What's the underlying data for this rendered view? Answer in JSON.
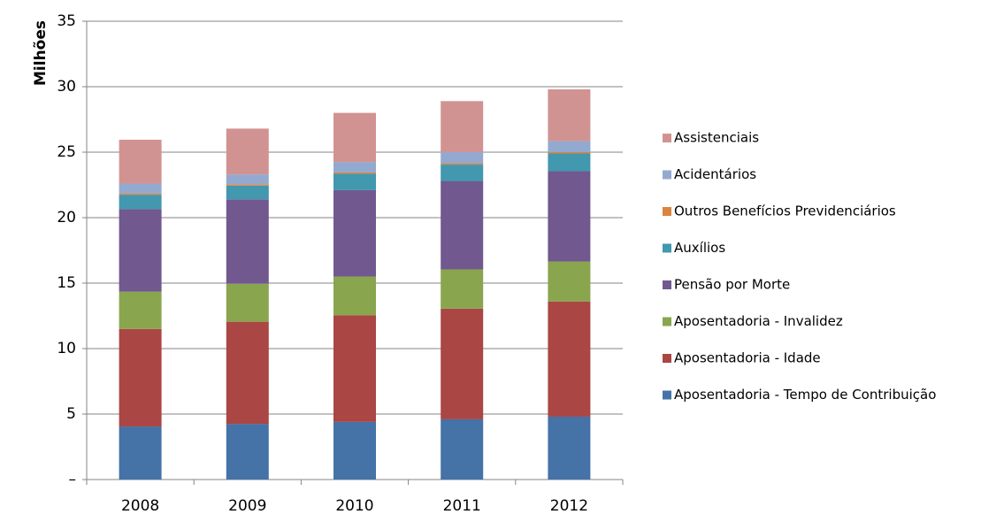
{
  "chart_data": {
    "type": "stacked_bar",
    "y_label": "Milhões",
    "categories": [
      "2008",
      "2009",
      "2010",
      "2011",
      "2012"
    ],
    "series": [
      {
        "name": "Aposentadoria - Tempo de Contribuição",
        "color": "#4572a7",
        "values": [
          4.05,
          4.25,
          4.4,
          4.6,
          4.8
        ]
      },
      {
        "name": "Aposentadoria - Idade",
        "color": "#aa4643",
        "values": [
          7.45,
          7.8,
          8.15,
          8.45,
          8.8
        ]
      },
      {
        "name": "Aposentadoria - Invalidez",
        "color": "#89a54e",
        "values": [
          2.85,
          2.9,
          2.95,
          3.0,
          3.05
        ]
      },
      {
        "name": "Pensão por Morte",
        "color": "#71588f",
        "values": [
          6.3,
          6.45,
          6.6,
          6.75,
          6.9
        ]
      },
      {
        "name": "Auxílios",
        "color": "#4198af",
        "values": [
          1.1,
          1.05,
          1.25,
          1.25,
          1.35
        ]
      },
      {
        "name": "Outros Benefícios Previdenciários",
        "color": "#db843d",
        "values": [
          0.1,
          0.1,
          0.1,
          0.1,
          0.1
        ]
      },
      {
        "name": "Acidentários",
        "color": "#93a9cf",
        "values": [
          0.75,
          0.75,
          0.8,
          0.85,
          0.85
        ]
      },
      {
        "name": "Assistenciais",
        "color": "#d19392",
        "values": [
          3.35,
          3.5,
          3.75,
          3.9,
          3.95
        ]
      }
    ],
    "ylim": [
      0,
      35
    ],
    "yticks": [
      {
        "value": 0,
        "label": "–"
      },
      5,
      10,
      15,
      20,
      25,
      30,
      35
    ],
    "grid": true,
    "legend": "right"
  }
}
